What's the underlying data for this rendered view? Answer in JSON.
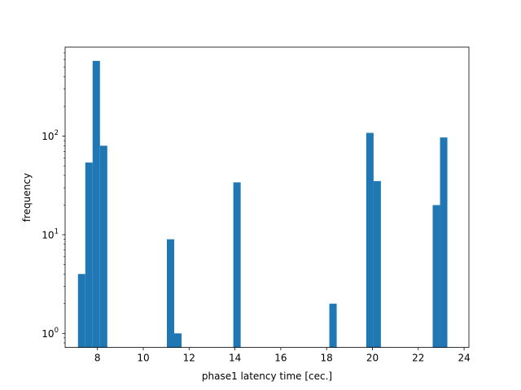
{
  "chart_data": {
    "type": "bar",
    "title": "",
    "xlabel": "phase1 latency time [cec.]",
    "ylabel": "frequency",
    "xlim": [
      6.59,
      24.21
    ],
    "ylim": [
      0.72,
      800
    ],
    "yscale": "log",
    "grid": false,
    "bar_color": "#1f77b4",
    "bin_width": 0.32,
    "x_ticks": [
      8,
      10,
      12,
      14,
      16,
      18,
      20,
      22,
      24
    ],
    "y_ticks": [
      {
        "value": 1,
        "base": "10",
        "exp": "0"
      },
      {
        "value": 10,
        "base": "10",
        "exp": "1"
      },
      {
        "value": 100,
        "base": "10",
        "exp": "2"
      }
    ],
    "bars": [
      {
        "x0": 7.15,
        "x1": 7.47,
        "value": 4
      },
      {
        "x0": 7.47,
        "x1": 7.79,
        "value": 54
      },
      {
        "x0": 7.79,
        "x1": 8.11,
        "value": 580
      },
      {
        "x0": 8.11,
        "x1": 8.43,
        "value": 80
      },
      {
        "x0": 11.03,
        "x1": 11.35,
        "value": 9
      },
      {
        "x0": 11.35,
        "x1": 11.67,
        "value": 1
      },
      {
        "x0": 13.93,
        "x1": 14.25,
        "value": 34
      },
      {
        "x0": 18.12,
        "x1": 18.44,
        "value": 2
      },
      {
        "x0": 19.73,
        "x1": 20.05,
        "value": 108
      },
      {
        "x0": 20.05,
        "x1": 20.37,
        "value": 35
      },
      {
        "x0": 22.63,
        "x1": 22.95,
        "value": 20
      },
      {
        "x0": 22.95,
        "x1": 23.27,
        "value": 97
      }
    ]
  }
}
